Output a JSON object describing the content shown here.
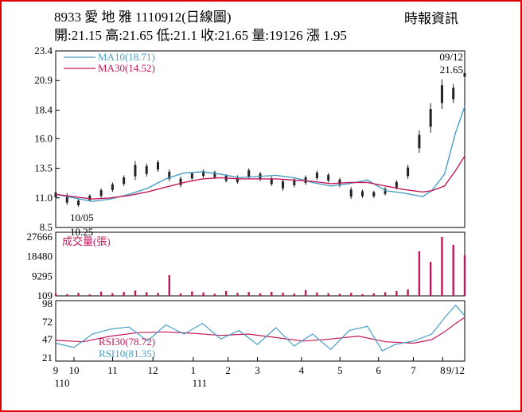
{
  "header": {
    "title": "8933 愛 地 雅 1110912(日線圖)",
    "source": "時報資訊",
    "ohlc": "開:21.15 高:21.65 低:21.1 收:21.65 量:19126 漲 1.95"
  },
  "chart_data": [
    {
      "type": "candlestick",
      "panel": "price",
      "y_ticks": [
        "23.4",
        "20.9",
        "18.4",
        "16.0",
        "13.5",
        "11.0",
        "8.5"
      ],
      "ylim": [
        8.5,
        23.4
      ],
      "legend": [
        {
          "label": "MA10(18.71)",
          "color": "#4a9ec4"
        },
        {
          "label": "MA30(14.52)",
          "color": "#c2185b"
        }
      ],
      "annotations": [
        {
          "date_label": "10/05",
          "value_label": "10.25",
          "kind": "low"
        },
        {
          "date_label": "09/12",
          "value_label": "21.65",
          "kind": "last"
        }
      ],
      "series": [
        {
          "name": "MA10",
          "color": "#4a9ec4",
          "points": [
            [
              0,
              11.3
            ],
            [
              10,
              11.0
            ],
            [
              20,
              10.7
            ],
            [
              30,
              10.9
            ],
            [
              40,
              11.3
            ],
            [
              50,
              11.8
            ],
            [
              60,
              12.6
            ],
            [
              70,
              13.1
            ],
            [
              80,
              13.2
            ],
            [
              90,
              13.0
            ],
            [
              100,
              12.7
            ],
            [
              110,
              12.8
            ],
            [
              120,
              12.9
            ],
            [
              130,
              12.7
            ],
            [
              140,
              12.3
            ],
            [
              150,
              12.0
            ],
            [
              160,
              12.2
            ],
            [
              170,
              12.5
            ],
            [
              180,
              11.6
            ],
            [
              190,
              11.4
            ],
            [
              200,
              11.1
            ],
            [
              205,
              11.6
            ],
            [
              212,
              13.0
            ],
            [
              218,
              16.5
            ],
            [
              223,
              18.71
            ]
          ]
        },
        {
          "name": "MA30",
          "color": "#c2185b",
          "points": [
            [
              0,
              11.3
            ],
            [
              10,
              11.1
            ],
            [
              20,
              10.9
            ],
            [
              30,
              11.0
            ],
            [
              40,
              11.2
            ],
            [
              50,
              11.5
            ],
            [
              60,
              11.9
            ],
            [
              70,
              12.3
            ],
            [
              80,
              12.6
            ],
            [
              90,
              12.7
            ],
            [
              100,
              12.6
            ],
            [
              110,
              12.6
            ],
            [
              120,
              12.6
            ],
            [
              130,
              12.5
            ],
            [
              140,
              12.4
            ],
            [
              150,
              12.2
            ],
            [
              160,
              12.3
            ],
            [
              170,
              12.3
            ],
            [
              180,
              12.0
            ],
            [
              190,
              11.7
            ],
            [
              200,
              11.5
            ],
            [
              205,
              11.6
            ],
            [
              212,
              12.0
            ],
            [
              218,
              13.3
            ],
            [
              223,
              14.52
            ]
          ]
        }
      ],
      "candles": [
        [
          10.9,
          11.6
        ],
        [
          10.4,
          11.4
        ],
        [
          10.25,
          10.9
        ],
        [
          10.7,
          11.3
        ],
        [
          11.0,
          11.8
        ],
        [
          11.5,
          12.3
        ],
        [
          12.0,
          12.9
        ],
        [
          12.5,
          14.1
        ],
        [
          12.8,
          13.9
        ],
        [
          13.2,
          14.2
        ],
        [
          12.4,
          13.4
        ],
        [
          11.9,
          12.8
        ],
        [
          12.5,
          13.2
        ],
        [
          12.7,
          13.4
        ],
        [
          12.6,
          13.3
        ],
        [
          12.3,
          13.0
        ],
        [
          12.2,
          12.9
        ],
        [
          12.6,
          13.5
        ],
        [
          12.4,
          13.2
        ],
        [
          12.0,
          12.8
        ],
        [
          11.6,
          12.6
        ],
        [
          11.9,
          12.7
        ],
        [
          12.1,
          12.9
        ],
        [
          12.5,
          13.3
        ],
        [
          12.3,
          13.1
        ],
        [
          11.9,
          12.7
        ],
        [
          10.9,
          11.9
        ],
        [
          11.0,
          11.7
        ],
        [
          11.0,
          11.6
        ],
        [
          11.2,
          11.9
        ],
        [
          11.7,
          12.5
        ],
        [
          12.6,
          13.8
        ],
        [
          14.8,
          16.7
        ],
        [
          16.5,
          19.0
        ],
        [
          18.5,
          21.0
        ],
        [
          19.0,
          20.6
        ],
        [
          21.1,
          21.65
        ]
      ]
    },
    {
      "type": "bar",
      "panel": "volume",
      "label": "成交量(張)",
      "y_ticks": [
        "27666",
        "18480",
        "9295",
        "109"
      ],
      "ylim": [
        109,
        27666
      ],
      "color": "#c2185b",
      "values": [
        1200,
        900,
        1500,
        800,
        2100,
        1400,
        1900,
        2600,
        1800,
        1500,
        9800,
        1300,
        2200,
        1700,
        1100,
        2400,
        1500,
        1900,
        1300,
        2000,
        1600,
        1200,
        2800,
        1700,
        1400,
        1100,
        1500,
        900,
        1300,
        1800,
        2400,
        3200,
        21000,
        16000,
        27666,
        24000,
        19126
      ]
    },
    {
      "type": "line",
      "panel": "rsi",
      "y_ticks": [
        "98",
        "72",
        "47",
        "21"
      ],
      "ylim": [
        21,
        98
      ],
      "series": [
        {
          "name": "RSI30",
          "label": "RSI30(78.72)",
          "color": "#c2185b",
          "points": [
            [
              0,
              46
            ],
            [
              15,
              44
            ],
            [
              30,
              52
            ],
            [
              45,
              57
            ],
            [
              60,
              58
            ],
            [
              75,
              56
            ],
            [
              90,
              53
            ],
            [
              105,
              55
            ],
            [
              120,
              50
            ],
            [
              135,
              45
            ],
            [
              150,
              48
            ],
            [
              165,
              52
            ],
            [
              180,
              44
            ],
            [
              195,
              42
            ],
            [
              205,
              47
            ],
            [
              212,
              58
            ],
            [
              218,
              70
            ],
            [
              223,
              78.72
            ]
          ]
        },
        {
          "name": "RSI10",
          "label": "RSI10(81.35)",
          "color": "#4a9ec4",
          "points": [
            [
              0,
              42
            ],
            [
              10,
              36
            ],
            [
              20,
              55
            ],
            [
              30,
              62
            ],
            [
              40,
              65
            ],
            [
              50,
              45
            ],
            [
              60,
              68
            ],
            [
              70,
              55
            ],
            [
              80,
              70
            ],
            [
              90,
              48
            ],
            [
              100,
              60
            ],
            [
              110,
              40
            ],
            [
              120,
              64
            ],
            [
              130,
              38
            ],
            [
              140,
              55
            ],
            [
              150,
              33
            ],
            [
              160,
              60
            ],
            [
              170,
              66
            ],
            [
              178,
              31
            ],
            [
              185,
              40
            ],
            [
              195,
              45
            ],
            [
              205,
              55
            ],
            [
              212,
              78
            ],
            [
              218,
              96
            ],
            [
              223,
              81.35
            ]
          ]
        }
      ]
    }
  ],
  "x_axis": {
    "months": [
      {
        "label": "9",
        "pos": 0
      },
      {
        "label": "10",
        "pos": 10
      },
      {
        "label": "11",
        "pos": 31
      },
      {
        "label": "12",
        "pos": 53
      },
      {
        "label": "1",
        "pos": 75
      },
      {
        "label": "2",
        "pos": 94
      },
      {
        "label": "3",
        "pos": 110
      },
      {
        "label": "4",
        "pos": 134
      },
      {
        "label": "5",
        "pos": 155
      },
      {
        "label": "6",
        "pos": 176
      },
      {
        "label": "7",
        "pos": 195
      },
      {
        "label": "8",
        "pos": 211
      },
      {
        "label": "9/12",
        "pos": 223
      }
    ],
    "years": [
      {
        "label": "110",
        "pos": 0
      },
      {
        "label": "111",
        "pos": 75
      }
    ]
  }
}
